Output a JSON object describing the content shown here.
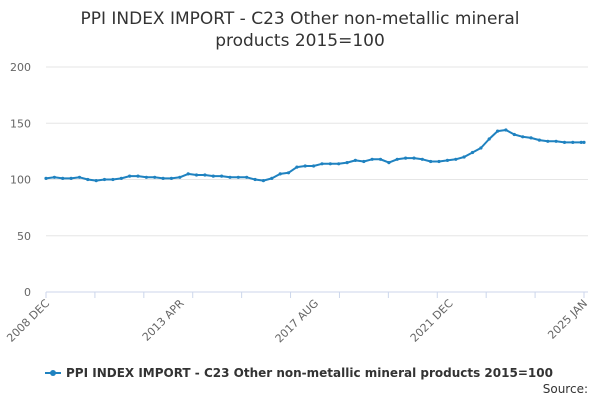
{
  "chart_data": {
    "type": "line",
    "title": "PPI INDEX IMPORT - C23 Other non-metallic mineral products 2015=100",
    "title_lines": [
      "PPI INDEX IMPORT - C23 Other non-metallic mineral",
      "products 2015=100"
    ],
    "xlabel": "",
    "ylabel": "",
    "ylim": [
      0,
      200
    ],
    "y_ticks": [
      "0",
      "50",
      "100",
      "150",
      "200"
    ],
    "x_tick_labels": [
      "2008 DEC",
      "2013 APR",
      "2017 AUG",
      "2021 DEC",
      "2025 JAN"
    ],
    "grid": true,
    "legend_position": "bottom",
    "line_color": "#1f82c0",
    "series": [
      {
        "name": "PPI INDEX IMPORT - C23 Other non-metallic mineral products 2015=100",
        "x": [
          "2008-12",
          "2009-03",
          "2009-06",
          "2009-09",
          "2009-12",
          "2010-03",
          "2010-06",
          "2010-09",
          "2010-12",
          "2011-03",
          "2011-06",
          "2011-09",
          "2011-12",
          "2012-03",
          "2012-06",
          "2012-09",
          "2012-12",
          "2013-03",
          "2013-06",
          "2013-09",
          "2013-12",
          "2014-03",
          "2014-06",
          "2014-09",
          "2014-12",
          "2015-03",
          "2015-06",
          "2015-09",
          "2015-12",
          "2016-03",
          "2016-06",
          "2016-09",
          "2016-12",
          "2017-03",
          "2017-06",
          "2017-09",
          "2017-12",
          "2018-03",
          "2018-06",
          "2018-09",
          "2018-12",
          "2019-03",
          "2019-06",
          "2019-09",
          "2019-12",
          "2020-03",
          "2020-06",
          "2020-09",
          "2020-12",
          "2021-03",
          "2021-06",
          "2021-09",
          "2021-12",
          "2022-03",
          "2022-06",
          "2022-09",
          "2022-12",
          "2023-03",
          "2023-06",
          "2023-09",
          "2023-12",
          "2024-03",
          "2024-06",
          "2024-09",
          "2024-12",
          "2025-01"
        ],
        "values": [
          101,
          102,
          101,
          101,
          102,
          100,
          99,
          100,
          100,
          101,
          103,
          103,
          102,
          102,
          101,
          101,
          102,
          105,
          104,
          104,
          103,
          103,
          102,
          102,
          102,
          100,
          99,
          101,
          105,
          106,
          111,
          112,
          112,
          114,
          114,
          114,
          115,
          117,
          116,
          118,
          118,
          115,
          118,
          119,
          119,
          118,
          116,
          116,
          117,
          118,
          120,
          124,
          128,
          136,
          143,
          144,
          140,
          138,
          137,
          135,
          134,
          134,
          133,
          133,
          133,
          133
        ]
      }
    ]
  },
  "legend": {
    "label": "PPI INDEX IMPORT - C23 Other non-metallic mineral products 2015=100"
  },
  "source": {
    "label": "Source:"
  }
}
